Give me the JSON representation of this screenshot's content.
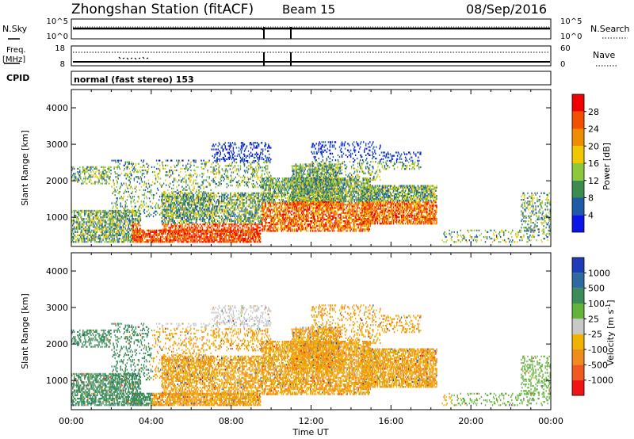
{
  "header": {
    "station": "Zhongshan Station (fitACF)",
    "beam": "Beam 15",
    "date": "08/Sep/2016"
  },
  "strip_labels": {
    "nsky": "N.Sky",
    "nsky_ticks": [
      "10^5",
      "10^0"
    ],
    "nsearch": "N.Search",
    "nsearch_ticks": [
      "10^5",
      "10^0"
    ],
    "freq": "Freq.",
    "freq_unit": "[MHz]",
    "freq_ticks": [
      "18",
      "8"
    ],
    "nave": "Nave",
    "nave_ticks": [
      "60",
      "0"
    ],
    "cpid": "CPID",
    "cpid_text": "normal (fast stereo) 153"
  },
  "chart_data": [
    {
      "type": "heatmap",
      "name": "power-panel",
      "ylabel": "Slant Range [km]",
      "yticks": [
        1000,
        2000,
        3000,
        4000
      ],
      "ylim": [
        200,
        4500
      ],
      "xlim": [
        0,
        24
      ],
      "xticks": [
        "00:00",
        "04:00",
        "08:00",
        "12:00",
        "16:00",
        "20:00",
        "00:00"
      ],
      "colorbar": {
        "label": "Power [dB]",
        "ticks": [
          "4",
          "8",
          "12",
          "16",
          "20",
          "24",
          "28"
        ],
        "colors": [
          "#0a14e6",
          "#1e5aa8",
          "#3c8c50",
          "#8cc83c",
          "#f0c800",
          "#f08c00",
          "#f05000",
          "#f00000"
        ]
      }
    },
    {
      "type": "heatmap",
      "name": "velocity-panel",
      "ylabel": "Slant Range [km]",
      "yticks": [
        1000,
        2000,
        3000,
        4000
      ],
      "ylim": [
        200,
        4500
      ],
      "xlim": [
        0,
        24
      ],
      "xticks": [
        "00:00",
        "04:00",
        "08:00",
        "12:00",
        "16:00",
        "20:00",
        "00:00"
      ],
      "xlabel": "Time UT",
      "colorbar": {
        "label": "Velocity [m s",
        "label_sup": "-1",
        "label_end": "]",
        "ticks": [
          "1000",
          "500",
          "100",
          "25",
          "-25",
          "-100",
          "-500",
          "-1000"
        ],
        "colors": [
          "#1e3cb4",
          "#2e6aa0",
          "#3c8c5a",
          "#64b43c",
          "#c8c8c8",
          "#f0b400",
          "#f08c1e",
          "#f05a1e",
          "#f01414"
        ]
      }
    }
  ]
}
